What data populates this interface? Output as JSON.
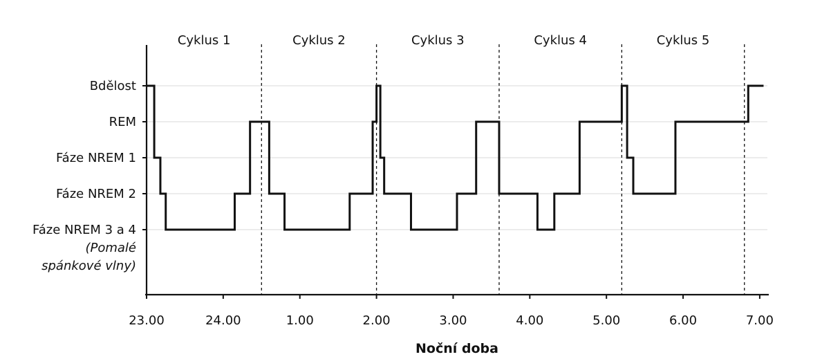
{
  "chart_data": {
    "type": "line",
    "title": "",
    "xlabel": "Noční doba",
    "ylabel": "",
    "x_ticks": [
      {
        "label": "23.00",
        "value": 23
      },
      {
        "label": "24.00",
        "value": 24
      },
      {
        "label": "1.00",
        "value": 25
      },
      {
        "label": "2.00",
        "value": 26
      },
      {
        "label": "3.00",
        "value": 27
      },
      {
        "label": "4.00",
        "value": 28
      },
      {
        "label": "5.00",
        "value": 29
      },
      {
        "label": "6.00",
        "value": 30
      },
      {
        "label": "7.00",
        "value": 31
      }
    ],
    "xlim": [
      23,
      31.1
    ],
    "levels": [
      {
        "label": "Bdělost",
        "value": 4
      },
      {
        "label": "REM",
        "value": 3
      },
      {
        "label": "Fáze NREM 1",
        "value": 2
      },
      {
        "label": "Fáze NREM 2",
        "value": 1
      },
      {
        "label": "Fáze NREM 3 a 4",
        "value": 0,
        "note_lines": [
          "(Pomalé",
          "spánkové vlny)"
        ]
      }
    ],
    "grid": true,
    "cycles": [
      {
        "label": "Cyklus 1",
        "start": 23,
        "end": 24.5
      },
      {
        "label": "Cyklus 2",
        "start": 24.5,
        "end": 26
      },
      {
        "label": "Cyklus 3",
        "start": 26,
        "end": 27.6
      },
      {
        "label": "Cyklus 4",
        "start": 27.6,
        "end": 29.2
      },
      {
        "label": "Cyklus 5",
        "start": 29.2,
        "end": 30.8
      }
    ],
    "boundaries": [
      24.5,
      26,
      27.6,
      29.2,
      30.8
    ],
    "series": [
      {
        "values": [
          [
            23.0,
            4
          ],
          [
            23.1,
            2
          ],
          [
            23.18,
            1
          ],
          [
            23.25,
            0
          ],
          [
            24.15,
            1
          ],
          [
            24.35,
            3
          ],
          [
            24.6,
            1
          ],
          [
            24.8,
            0
          ],
          [
            25.65,
            1
          ],
          [
            25.95,
            3
          ],
          [
            26.0,
            4
          ],
          [
            26.05,
            2
          ],
          [
            26.1,
            1
          ],
          [
            26.45,
            0
          ],
          [
            27.05,
            1
          ],
          [
            27.3,
            3
          ],
          [
            27.6,
            1
          ],
          [
            28.1,
            0
          ],
          [
            28.32,
            1
          ],
          [
            28.65,
            3
          ],
          [
            29.2,
            4
          ],
          [
            29.27,
            2
          ],
          [
            29.35,
            1
          ],
          [
            29.9,
            3
          ],
          [
            30.85,
            4
          ],
          [
            31.05,
            4
          ]
        ]
      }
    ]
  }
}
